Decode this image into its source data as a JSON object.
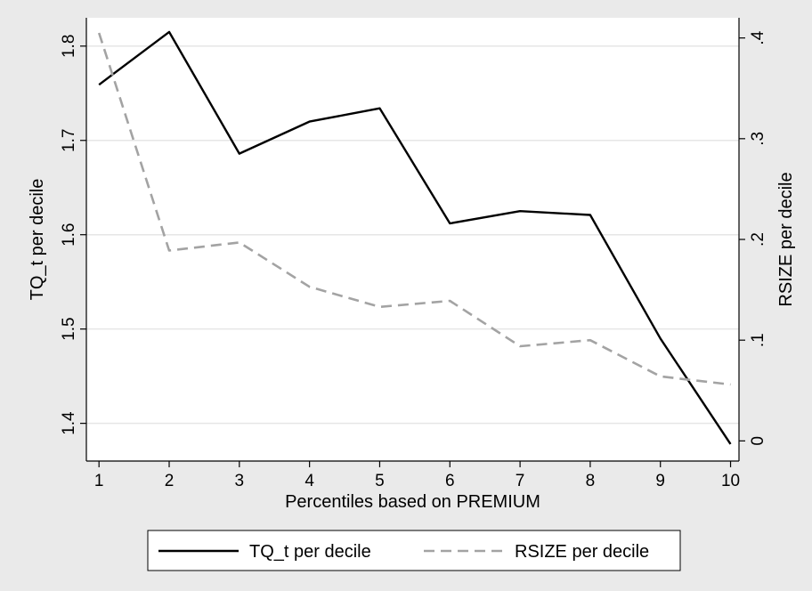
{
  "chart_data": {
    "type": "line",
    "x": [
      1,
      2,
      3,
      4,
      5,
      6,
      7,
      8,
      9,
      10
    ],
    "xlabel": "Percentiles based on PREMIUM",
    "xticks": [
      "1",
      "2",
      "3",
      "4",
      "5",
      "6",
      "7",
      "8",
      "9",
      "10"
    ],
    "xlim": [
      0.82,
      10.12
    ],
    "left_axis": {
      "label": "TQ_t per decile",
      "ylim": [
        1.36,
        1.83
      ],
      "ticks": [
        1.4,
        1.5,
        1.6,
        1.7,
        1.8
      ],
      "tick_labels": [
        "1.4",
        "1.5",
        "1.6",
        "1.7",
        "1.8"
      ]
    },
    "right_axis": {
      "label": "RSIZE per decile",
      "ylim": [
        -0.02,
        0.42
      ],
      "ticks": [
        0,
        0.1,
        0.2,
        0.3,
        0.4
      ],
      "tick_labels": [
        "0",
        ".1",
        ".2",
        ".3",
        ".4"
      ]
    },
    "series": [
      {
        "name": "TQ_t per decile",
        "axis": "left",
        "color": "#000000",
        "dash": "solid",
        "values": [
          1.759,
          1.815,
          1.686,
          1.72,
          1.734,
          1.612,
          1.625,
          1.621,
          1.49,
          1.378
        ]
      },
      {
        "name": "RSIZE per decile",
        "axis": "right",
        "color": "#a3a3a3",
        "dash": "dashed",
        "values": [
          0.405,
          0.189,
          0.197,
          0.153,
          0.133,
          0.139,
          0.094,
          0.1,
          0.064,
          0.056
        ]
      }
    ],
    "grid": true,
    "legend_position": "bottom",
    "colors": {
      "background": "#eaeaea",
      "plot_area": "#ffffff",
      "grid": "#e6e6e6"
    }
  }
}
